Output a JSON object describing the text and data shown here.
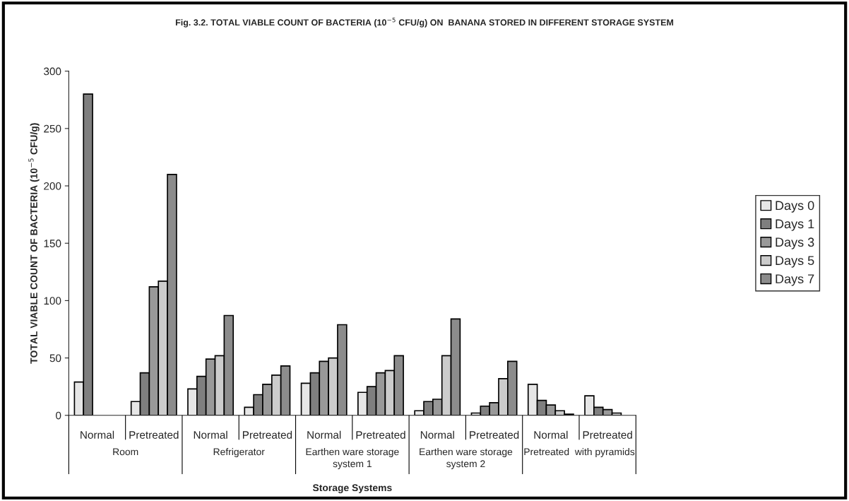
{
  "chart_data": {
    "type": "bar",
    "title": "Fig. 3.2. TOTAL VIABLE COUNT OF BACTERIA (10$^{−5}$ CFU/g) ON  BANANA STORED IN DIFFERENT STORAGE SYSTEM",
    "xlabel": "Storage Systems",
    "ylabel": "TOTAL VIABLE COUNT OF BACTERIA (10$^{−5}$ CFU/g)",
    "categories": [
      "Normal",
      "Pretreated",
      "Normal",
      "Pretreated",
      "Normal",
      "Pretreated",
      "Normal",
      "Pretreated",
      "Normal",
      "Pretreated"
    ],
    "annotations": [
      "Room",
      "Refrigerator",
      "Earthen ware storage\nsystem 1",
      "Earthen ware storage\nsystem 2",
      "Pretreated  with pyramids"
    ],
    "series": [
      {
        "name": "Days 0",
        "color": "#e6e6e6",
        "values": [
          29,
          12,
          23,
          7,
          28,
          20,
          4,
          2,
          27,
          17
        ]
      },
      {
        "name": "Days 1",
        "color": "#7f7f7f",
        "values": [
          280,
          37,
          34,
          18,
          37,
          25,
          12,
          8,
          13,
          7
        ]
      },
      {
        "name": "Days 3",
        "color": "#999999",
        "values": [
          null,
          112,
          49,
          27,
          47,
          37,
          14,
          11,
          9,
          5
        ]
      },
      {
        "name": "Days 5",
        "color": "#cccccc",
        "values": [
          null,
          117,
          52,
          35,
          50,
          39,
          52,
          32,
          4,
          2
        ]
      },
      {
        "name": "Days 7",
        "color": "#8c8c8c",
        "values": [
          null,
          210,
          87,
          43,
          79,
          52,
          84,
          47,
          1,
          null
        ]
      }
    ],
    "ylim": [
      0,
      300
    ],
    "yticks": [
      0,
      50,
      100,
      150,
      200,
      250,
      300
    ],
    "grid": false,
    "legend": "right"
  }
}
